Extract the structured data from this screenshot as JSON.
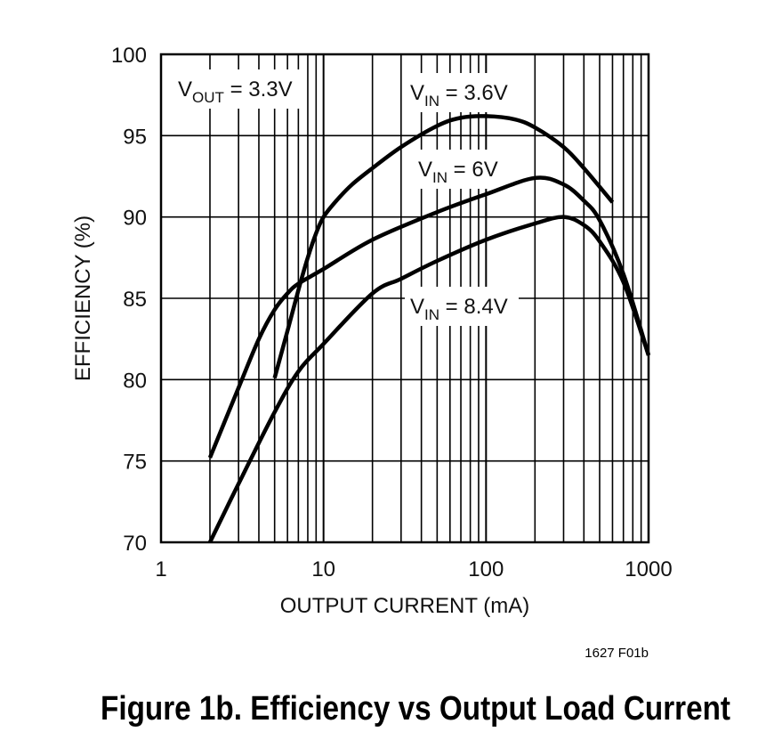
{
  "chart_data": {
    "type": "line",
    "title": "Figure 1b. Efficiency vs Output Load Current",
    "figure_code": "1627 F01b",
    "xlabel": "OUTPUT CURRENT (mA)",
    "ylabel": "EFFICIENCY (%)",
    "xscale": "log",
    "xlim": [
      1,
      1000
    ],
    "ylim": [
      70,
      100
    ],
    "grid": true,
    "xticks": [
      "1",
      "10",
      "100",
      "1000"
    ],
    "yticks": [
      "70",
      "75",
      "80",
      "85",
      "90",
      "95",
      "100"
    ],
    "annotation": {
      "main": "V",
      "sub": "OUT",
      "rest": " = 3.3V"
    },
    "series": [
      {
        "name": "VIN = 3.6V",
        "label": {
          "main": "V",
          "sub": "IN",
          "rest": " = 3.6V"
        },
        "x": [
          5,
          6,
          7,
          8,
          9,
          10,
          12,
          15,
          20,
          30,
          50,
          70,
          100,
          150,
          200,
          300,
          400,
          600
        ],
        "y": [
          80.1,
          83,
          85.5,
          87.5,
          89,
          90,
          91,
          92,
          93,
          94.3,
          95.6,
          96.1,
          96.2,
          96,
          95.5,
          94.3,
          93,
          90.9
        ]
      },
      {
        "name": "VIN = 6V",
        "label": {
          "main": "V",
          "sub": "IN",
          "rest": " = 6V"
        },
        "x": [
          2,
          3,
          4,
          5,
          6,
          7,
          10,
          20,
          50,
          100,
          200,
          300,
          400,
          500,
          700,
          1000
        ],
        "y": [
          75.2,
          79.5,
          82.5,
          84.3,
          85.3,
          85.9,
          86.8,
          88.6,
          90.3,
          91.4,
          92.4,
          92,
          91,
          89.8,
          86.5,
          81.5
        ]
      },
      {
        "name": "VIN = 8.4V",
        "label": {
          "main": "V",
          "sub": "IN",
          "rest": " = 8.4V"
        },
        "x": [
          2,
          3,
          5,
          7,
          10,
          20,
          30,
          50,
          100,
          200,
          300,
          400,
          500,
          700,
          1000
        ],
        "y": [
          70,
          73.6,
          78,
          80.5,
          82.2,
          85.3,
          86.2,
          87.3,
          88.6,
          89.6,
          90,
          89.5,
          88.5,
          86,
          81.5
        ]
      }
    ]
  }
}
